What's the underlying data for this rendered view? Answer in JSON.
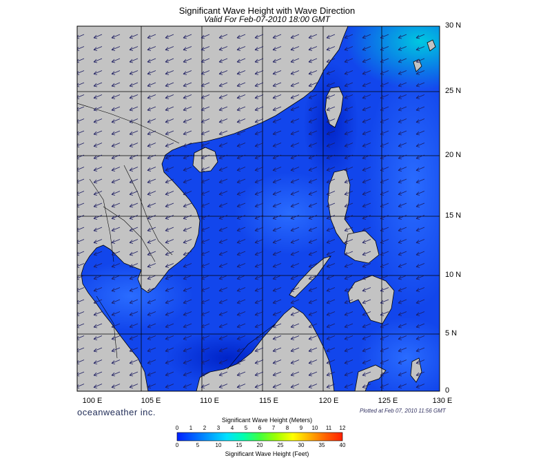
{
  "header": {
    "title": "Significant Wave Height with Wave Direction",
    "subtitle": "Valid For Feb-07-2010 18:00 GMT"
  },
  "map": {
    "lon_range": [
      98,
      130
    ],
    "lat_range": [
      0,
      30
    ],
    "lat_labels": [
      "30 N",
      "25 N",
      "20 N",
      "15 N",
      "10 N",
      "5 N",
      "0"
    ],
    "lon_labels": [
      "100 E",
      "105 E",
      "110 E",
      "115 E",
      "120 E",
      "125 E",
      "130 E"
    ],
    "land_color": "#c3c3c3",
    "sea_base_color": "#1040e8",
    "arrow_color": "#1c1c60",
    "dominant_wave_direction": "from northeast toward southwest"
  },
  "footer": {
    "brand": "oceanweather inc.",
    "plotted": "Plotted at Feb 07, 2010 11:56 GMT"
  },
  "colorbar": {
    "title_meters": "Significant Wave Height (Meters)",
    "title_feet": "Significant Wave Height (Feet)",
    "meter_ticks": [
      "0",
      "1",
      "2",
      "3",
      "4",
      "5",
      "6",
      "7",
      "8",
      "9",
      "10",
      "11",
      "12"
    ],
    "feet_ticks": [
      "0",
      "5",
      "10",
      "15",
      "20",
      "25",
      "30",
      "35",
      "40"
    ],
    "stops": [
      "#0020ff",
      "#0060ff",
      "#00a0ff",
      "#00e0ff",
      "#00ffb0",
      "#40ff40",
      "#a0ff00",
      "#ffff00",
      "#ffb000",
      "#ff6000",
      "#ff2000"
    ]
  }
}
